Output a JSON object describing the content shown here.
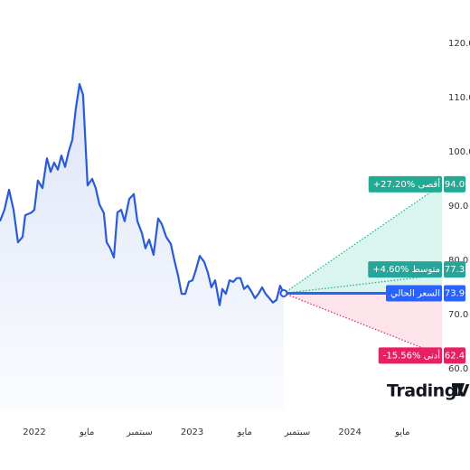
{
  "chart_data": {
    "type": "line",
    "logo": "TradingView",
    "series": [
      {
        "color": "#2a5bd7",
        "x": [
          -2.61,
          -2.27,
          -1.92,
          -1.58,
          -1.24,
          -0.89,
          -0.69,
          -0.21,
          0,
          0.27,
          0.62,
          0.96,
          1.24,
          1.51,
          1.79,
          2.06,
          2.34,
          2.61,
          2.89,
          3.16,
          3.44,
          3.71,
          4.05,
          4.4,
          4.67,
          4.95,
          5.29,
          5.5,
          5.77,
          6.05,
          6.32,
          6.6,
          6.87,
          7.22,
          7.56,
          7.84,
          8.18,
          8.45,
          8.73,
          9.07,
          9.42,
          9.69,
          10.03,
          10.38,
          10.65,
          10.93,
          11.2,
          11.48,
          11.75,
          12.03,
          12.3,
          12.58,
          12.92,
          13.2,
          13.47,
          13.75,
          14.09,
          14.3,
          14.57,
          14.85,
          15.12,
          15.4,
          15.67,
          15.95,
          16.22,
          16.49,
          16.77,
          17.04,
          17.32,
          17.59,
          17.87,
          18.14,
          18.42,
          18.69,
          18.97
        ],
        "values": [
          87.2,
          89.3,
          93.0,
          89.3,
          83.3,
          84.3,
          88.3,
          88.8,
          89.3,
          94.7,
          93.3,
          98.8,
          96.3,
          98.0,
          96.7,
          99.3,
          97.2,
          100.0,
          102.2,
          108.0,
          112.5,
          110.5,
          93.8,
          95.0,
          93.3,
          90.3,
          88.7,
          83.3,
          82.2,
          80.5,
          88.8,
          89.3,
          87.2,
          91.3,
          92.2,
          87.2,
          85.0,
          82.2,
          83.8,
          81.0,
          87.7,
          86.7,
          84.3,
          83.0,
          80.0,
          77.2,
          73.8,
          73.8,
          76.0,
          76.3,
          78.3,
          80.8,
          79.7,
          77.7,
          75.0,
          76.3,
          71.7,
          74.7,
          73.8,
          76.3,
          76.0,
          76.7,
          76.7,
          74.7,
          75.3,
          74.3,
          73.0,
          73.8,
          75.0,
          73.8,
          73.0,
          72.2,
          72.7,
          75.3,
          73.9
        ]
      }
    ],
    "forecast": {
      "end_x": 31,
      "current": {
        "value": 73.9,
        "value_label": "73.9",
        "label": "السعر الحالي",
        "color": "#2962ff"
      },
      "targets": [
        {
          "value": 94.0,
          "value_label": "94.0",
          "label": "+27.20% أقصى",
          "color": "#22ab94",
          "fill": "#d9f5ee"
        },
        {
          "value": 77.3,
          "value_label": "77.3",
          "label": "+4.60% متوسط",
          "color": "#26a69a"
        },
        {
          "value": 62.4,
          "value_label": "62.4",
          "label": "-15.56% أدنى",
          "color": "#e91e63",
          "fill": "#fde3ea"
        }
      ]
    },
    "xlim": [
      -2.61,
      31.07
    ],
    "xticks": [
      {
        "value": 0,
        "label": "2022"
      },
      {
        "value": 4,
        "label": "مايو"
      },
      {
        "value": 8,
        "label": "سبتمبر"
      },
      {
        "value": 12,
        "label": "2023"
      },
      {
        "value": 16,
        "label": "مايو"
      },
      {
        "value": 20,
        "label": "سبتمبر"
      },
      {
        "value": 24,
        "label": "2024"
      },
      {
        "value": 28,
        "label": "مايو"
      }
    ],
    "ylim": [
      52.3,
      128
    ],
    "yticks": [
      {
        "value": 60,
        "label": "60.0"
      },
      {
        "value": 70,
        "label": "70.0"
      },
      {
        "value": 80,
        "label": "80.0"
      },
      {
        "value": 90,
        "label": "90.0"
      },
      {
        "value": 100,
        "label": "100.0"
      },
      {
        "value": 110,
        "label": "110.0"
      },
      {
        "value": 120,
        "label": "120.0"
      }
    ],
    "grid": false
  }
}
